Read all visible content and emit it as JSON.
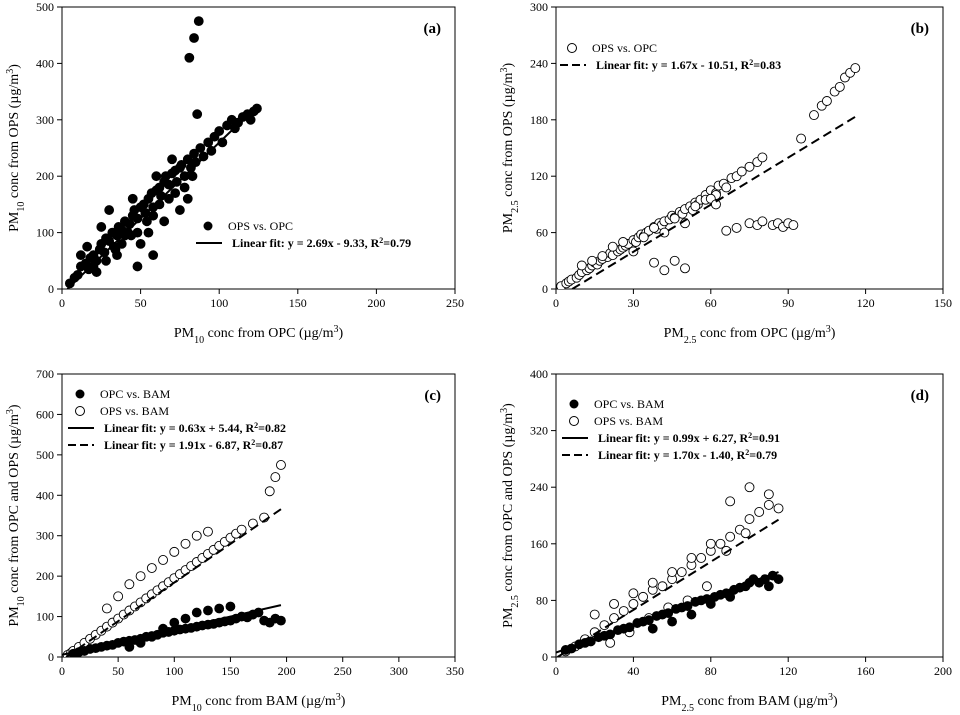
{
  "chart_data": [
    {
      "type": "scatter",
      "panel_label": "(a)",
      "xlabel_parts": [
        "PM",
        "10",
        " conc from OPC (µg/m",
        "3",
        ")"
      ],
      "ylabel_parts": [
        "PM",
        "10",
        " conc from OPS (µg/m",
        "3",
        ")"
      ],
      "xlim": [
        0,
        250
      ],
      "ylim": [
        0,
        500
      ],
      "xticks": [
        0,
        50,
        100,
        150,
        200,
        250
      ],
      "yticks": [
        0,
        100,
        200,
        300,
        400,
        500
      ],
      "legend_position": "lower-right",
      "series": [
        {
          "name": "OPS vs. OPC",
          "marker": "filled",
          "x": [
            5,
            8,
            10,
            12,
            15,
            17,
            18,
            20,
            22,
            24,
            25,
            27,
            28,
            30,
            32,
            33,
            35,
            36,
            38,
            40,
            42,
            43,
            45,
            46,
            48,
            50,
            52,
            53,
            55,
            57,
            58,
            60,
            62,
            63,
            65,
            66,
            68,
            70,
            72,
            73,
            75,
            76,
            78,
            80,
            82,
            84,
            85,
            88,
            90,
            93,
            95,
            97,
            100,
            102,
            105,
            108,
            110,
            112,
            115,
            118,
            120,
            122,
            124,
            12,
            16,
            20,
            25,
            30,
            35,
            40,
            45,
            50,
            55,
            60,
            65,
            70,
            75,
            80,
            22,
            28,
            34,
            38,
            44,
            48,
            54,
            58,
            62,
            68,
            72,
            78,
            83,
            86,
            81,
            84,
            87,
            48,
            58
          ],
          "y": [
            10,
            20,
            25,
            40,
            45,
            35,
            55,
            60,
            50,
            70,
            80,
            65,
            90,
            85,
            100,
            75,
            95,
            110,
            105,
            120,
            100,
            115,
            130,
            140,
            125,
            145,
            150,
            135,
            160,
            170,
            145,
            175,
            180,
            165,
            190,
            200,
            185,
            205,
            210,
            190,
            215,
            220,
            200,
            230,
            215,
            240,
            225,
            250,
            235,
            260,
            245,
            270,
            280,
            260,
            290,
            300,
            285,
            295,
            305,
            310,
            300,
            315,
            320,
            60,
            75,
            40,
            110,
            140,
            60,
            95,
            160,
            80,
            100,
            200,
            120,
            230,
            140,
            160,
            30,
            50,
            70,
            80,
            95,
            100,
            120,
            130,
            150,
            160,
            170,
            180,
            200,
            310,
            410,
            445,
            475,
            40,
            60
          ]
        }
      ],
      "fits": [
        {
          "label": "Linear fit: y = 2.69x - 9.33, R",
          "label_sup": "2",
          "label_tail": "=0.79",
          "slope": 2.69,
          "intercept": -9.33,
          "x_range": [
            3.5,
            124
          ],
          "style": "solid"
        }
      ]
    },
    {
      "type": "scatter",
      "panel_label": "(b)",
      "xlabel_parts": [
        "PM",
        "2.5",
        " conc from OPC (µg/m",
        "3",
        ")"
      ],
      "ylabel_parts": [
        "PM",
        "2.5",
        " conc from OPS (µg/m",
        "3",
        ")"
      ],
      "xlim": [
        0,
        150
      ],
      "ylim": [
        0,
        300
      ],
      "xticks": [
        0,
        30,
        60,
        90,
        120,
        150
      ],
      "yticks": [
        0,
        60,
        120,
        180,
        240,
        300
      ],
      "legend_position": "top-left",
      "series": [
        {
          "name": "OPS vs. OPC",
          "marker": "open",
          "x": [
            2,
            4,
            5,
            6,
            8,
            9,
            10,
            12,
            13,
            14,
            15,
            16,
            17,
            18,
            20,
            21,
            22,
            24,
            25,
            26,
            27,
            28,
            30,
            31,
            32,
            33,
            34,
            35,
            36,
            38,
            39,
            40,
            41,
            42,
            44,
            45,
            46,
            48,
            49,
            50,
            52,
            53,
            54,
            55,
            56,
            58,
            60,
            62,
            63,
            65,
            66,
            68,
            70,
            72,
            75,
            78,
            80,
            10,
            14,
            18,
            22,
            26,
            30,
            34,
            38,
            42,
            46,
            50,
            54,
            58,
            62,
            38,
            42,
            46,
            50,
            66,
            70,
            75,
            78,
            80,
            84,
            86,
            88,
            90,
            92,
            95,
            100,
            103,
            105,
            108,
            110,
            112,
            114,
            116,
            60,
            62
          ],
          "y": [
            3,
            6,
            8,
            10,
            12,
            15,
            18,
            20,
            22,
            25,
            28,
            26,
            30,
            32,
            34,
            38,
            36,
            40,
            42,
            44,
            46,
            48,
            52,
            50,
            55,
            58,
            56,
            60,
            62,
            66,
            64,
            70,
            68,
            72,
            74,
            78,
            76,
            82,
            80,
            85,
            88,
            84,
            92,
            90,
            95,
            100,
            105,
            102,
            110,
            112,
            108,
            118,
            120,
            125,
            130,
            135,
            140,
            25,
            30,
            35,
            45,
            50,
            40,
            55,
            65,
            60,
            75,
            70,
            88,
            95,
            100,
            28,
            20,
            30,
            22,
            62,
            65,
            70,
            68,
            72,
            68,
            70,
            66,
            70,
            68,
            160,
            185,
            195,
            200,
            210,
            215,
            225,
            230,
            235,
            96,
            90
          ]
        }
      ],
      "fits": [
        {
          "label": "Linear fit: y = 1.67x - 10.51, R",
          "label_sup": "2",
          "label_tail": "=0.83",
          "slope": 1.67,
          "intercept": -10.51,
          "x_range": [
            6.3,
            117
          ],
          "style": "dashed"
        }
      ]
    },
    {
      "type": "scatter",
      "panel_label": "(c)",
      "xlabel_parts": [
        "PM",
        "10",
        " conc from BAM (µg/m",
        "3",
        ")"
      ],
      "ylabel_parts": [
        "PM",
        "10",
        " conc from OPC and OPS (µg/m",
        "3",
        ")"
      ],
      "xlim": [
        0,
        350
      ],
      "ylim": [
        0,
        700
      ],
      "xticks": [
        0,
        50,
        100,
        150,
        200,
        250,
        300,
        350
      ],
      "yticks": [
        0,
        100,
        200,
        300,
        400,
        500,
        600,
        700
      ],
      "legend_position": "top-left",
      "series": [
        {
          "name": "OPC vs. BAM",
          "marker": "filled",
          "x": [
            10,
            15,
            20,
            25,
            30,
            35,
            40,
            45,
            50,
            55,
            60,
            65,
            70,
            75,
            80,
            85,
            90,
            95,
            100,
            105,
            110,
            115,
            120,
            125,
            130,
            135,
            140,
            145,
            150,
            155,
            160,
            165,
            170,
            175,
            180,
            185,
            190,
            195,
            60,
            70,
            80,
            90,
            100,
            110,
            120,
            130,
            140,
            150
          ],
          "y": [
            8,
            12,
            15,
            20,
            22,
            25,
            28,
            30,
            35,
            38,
            40,
            42,
            45,
            50,
            52,
            55,
            60,
            62,
            65,
            68,
            70,
            72,
            75,
            78,
            80,
            82,
            85,
            88,
            90,
            95,
            100,
            98,
            105,
            110,
            90,
            85,
            95,
            90,
            25,
            35,
            50,
            70,
            85,
            95,
            110,
            115,
            120,
            125
          ]
        },
        {
          "name": "OPS vs. BAM",
          "marker": "open",
          "x": [
            5,
            8,
            10,
            15,
            20,
            25,
            30,
            35,
            40,
            45,
            50,
            55,
            60,
            65,
            70,
            75,
            80,
            85,
            90,
            95,
            100,
            105,
            110,
            115,
            120,
            125,
            130,
            135,
            140,
            145,
            150,
            155,
            160,
            170,
            180,
            185,
            190,
            195,
            40,
            50,
            60,
            70,
            80,
            90,
            100,
            110,
            120,
            130
          ],
          "y": [
            5,
            10,
            15,
            25,
            35,
            45,
            55,
            65,
            75,
            85,
            95,
            105,
            115,
            125,
            135,
            145,
            155,
            165,
            175,
            185,
            195,
            205,
            215,
            225,
            235,
            245,
            255,
            265,
            275,
            285,
            295,
            305,
            315,
            330,
            345,
            410,
            445,
            475,
            120,
            150,
            180,
            200,
            220,
            240,
            260,
            280,
            300,
            310
          ]
        }
      ],
      "fits": [
        {
          "label": "Linear fit: y = 0.63x + 5.44, R",
          "label_sup": "2",
          "label_tail": "=0.82",
          "slope": 0.63,
          "intercept": 5.44,
          "x_range": [
            0,
            195
          ],
          "style": "solid"
        },
        {
          "label": "Linear fit: y = 1.91x - 6.87, R",
          "label_sup": "2",
          "label_tail": "=0.87",
          "slope": 1.91,
          "intercept": -6.87,
          "x_range": [
            3.6,
            195
          ],
          "style": "dashed"
        }
      ]
    },
    {
      "type": "scatter",
      "panel_label": "(d)",
      "xlabel_parts": [
        "PM",
        "2.5",
        " conc from BAM (µg/m",
        "3",
        ")"
      ],
      "ylabel_parts": [
        "PM",
        "2.5",
        " conc from OPC and OPS (µg/m",
        "3",
        ")"
      ],
      "xlim": [
        0,
        200
      ],
      "ylim": [
        0,
        400
      ],
      "xticks": [
        0,
        40,
        80,
        120,
        160,
        200
      ],
      "yticks": [
        0,
        80,
        160,
        240,
        320,
        400
      ],
      "legend_position": "top-left",
      "series": [
        {
          "name": "OPC vs. BAM",
          "marker": "filled",
          "x": [
            5,
            8,
            12,
            15,
            18,
            22,
            25,
            28,
            32,
            35,
            38,
            42,
            45,
            48,
            52,
            55,
            58,
            62,
            65,
            68,
            72,
            75,
            78,
            82,
            85,
            88,
            92,
            95,
            98,
            100,
            102,
            105,
            108,
            110,
            112,
            115,
            50,
            60,
            70,
            80,
            90
          ],
          "y": [
            10,
            12,
            18,
            20,
            22,
            28,
            30,
            32,
            38,
            40,
            42,
            48,
            50,
            52,
            58,
            60,
            62,
            68,
            70,
            72,
            78,
            80,
            82,
            85,
            88,
            90,
            95,
            98,
            100,
            105,
            110,
            105,
            110,
            100,
            115,
            110,
            40,
            50,
            60,
            75,
            85
          ]
        },
        {
          "name": "OPS vs. BAM",
          "marker": "open",
          "x": [
            5,
            10,
            15,
            20,
            25,
            30,
            35,
            40,
            45,
            50,
            55,
            60,
            65,
            70,
            75,
            80,
            85,
            90,
            95,
            100,
            105,
            110,
            115,
            20,
            30,
            40,
            50,
            60,
            70,
            80,
            90,
            100,
            110,
            28,
            38,
            48,
            58,
            68,
            78,
            88,
            98
          ],
          "y": [
            8,
            15,
            25,
            35,
            45,
            55,
            65,
            75,
            85,
            95,
            100,
            110,
            120,
            130,
            140,
            150,
            160,
            170,
            180,
            195,
            205,
            215,
            210,
            60,
            75,
            90,
            105,
            120,
            140,
            160,
            220,
            240,
            230,
            20,
            35,
            55,
            70,
            80,
            100,
            150,
            175
          ]
        }
      ],
      "fits": [
        {
          "label": "Linear fit: y = 0.99x + 6.27, R",
          "label_sup": "2",
          "label_tail": "=0.91",
          "slope": 0.99,
          "intercept": 6.27,
          "x_range": [
            0,
            115
          ],
          "style": "solid"
        },
        {
          "label": "Linear fit: y = 1.70x - 1.40, R",
          "label_sup": "2",
          "label_tail": "=0.79",
          "slope": 1.7,
          "intercept": -1.4,
          "x_range": [
            0.8,
            115
          ],
          "style": "dashed"
        }
      ]
    }
  ]
}
